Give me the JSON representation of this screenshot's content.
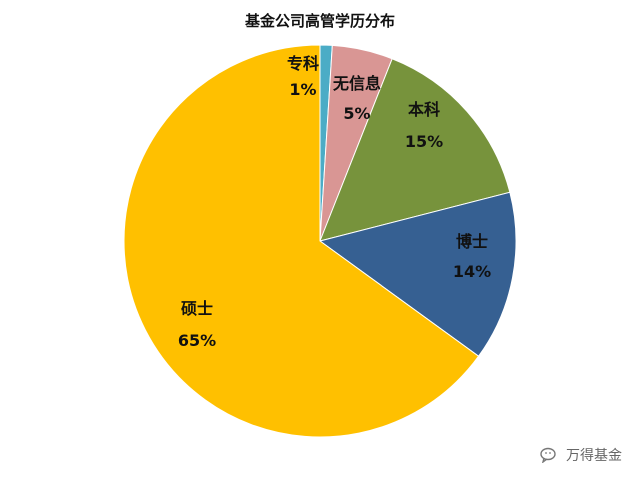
{
  "chart_data": {
    "type": "pie",
    "title": "基金公司高管学历分布",
    "slices": [
      {
        "label": "专科",
        "value": 1,
        "pct_label": "1%",
        "color": "#4bacc6"
      },
      {
        "label": "无信息",
        "value": 5,
        "pct_label": "5%",
        "color": "#d99694"
      },
      {
        "label": "本科",
        "value": 15,
        "pct_label": "15%",
        "color": "#77933c"
      },
      {
        "label": "博士",
        "value": 14,
        "pct_label": "14%",
        "color": "#366092"
      },
      {
        "label": "硕士",
        "value": 65,
        "pct_label": "65%",
        "color": "#ffc000"
      }
    ],
    "start_angle": "12 o'clock",
    "direction": "clockwise",
    "legend": "none"
  },
  "watermark": {
    "text": "万得基金",
    "icon": "wechat-icon"
  }
}
